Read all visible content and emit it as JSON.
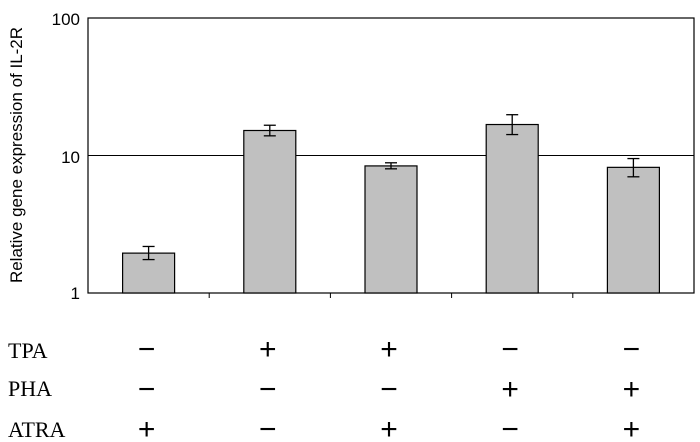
{
  "chart_data": {
    "type": "bar",
    "y_scale": "log",
    "ylim": [
      1,
      100
    ],
    "y_ticks": [
      "1",
      "10",
      "100"
    ],
    "ylabel": "Relative gene expression of IL-2R",
    "gridlines": [
      10
    ],
    "colors": {
      "bar_fill": "#c0c0c0",
      "bar_stroke": "#000000",
      "gridline": "#000000"
    },
    "values": [
      1.95,
      15.2,
      8.4,
      16.8,
      8.2
    ],
    "error_low": [
      1.75,
      13.9,
      8.0,
      14.2,
      7.0
    ],
    "error_high": [
      2.18,
      16.6,
      8.85,
      19.8,
      9.5
    ],
    "conditions": {
      "labels": [
        "TPA",
        "PHA",
        "ATRA"
      ],
      "rows": [
        [
          "−",
          "+",
          "+",
          "−",
          "−"
        ],
        [
          "−",
          "−",
          "−",
          "+",
          "+"
        ],
        [
          "+",
          "−",
          "+",
          "−",
          "+"
        ]
      ]
    }
  }
}
